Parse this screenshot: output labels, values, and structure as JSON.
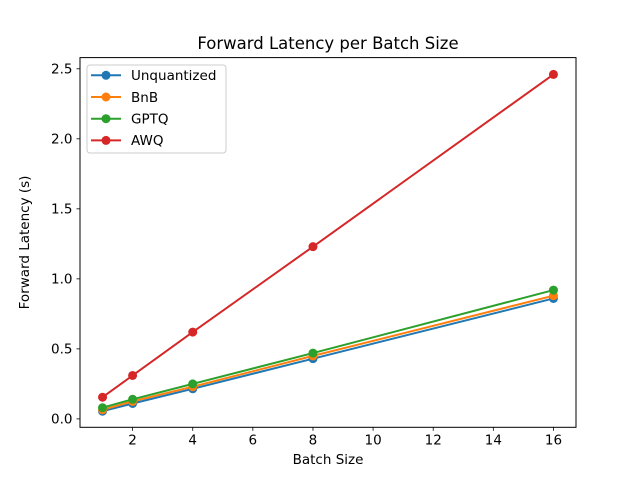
{
  "figure": {
    "background": "#ffffff"
  },
  "chart_data": {
    "type": "line",
    "title": "Forward Latency per Batch Size",
    "xlabel": "Batch Size",
    "ylabel": "Forward Latency (s)",
    "x": [
      1,
      2,
      4,
      8,
      16
    ],
    "series": [
      {
        "name": "Unquantized",
        "color": "#1f77b4",
        "values": [
          0.055,
          0.11,
          0.215,
          0.43,
          0.86
        ]
      },
      {
        "name": "BnB",
        "color": "#ff7f0e",
        "values": [
          0.065,
          0.125,
          0.23,
          0.45,
          0.88
        ]
      },
      {
        "name": "GPTQ",
        "color": "#2ca02c",
        "values": [
          0.08,
          0.14,
          0.25,
          0.47,
          0.92
        ]
      },
      {
        "name": "AWQ",
        "color": "#d62728",
        "values": [
          0.155,
          0.31,
          0.62,
          1.23,
          2.46
        ]
      }
    ],
    "xlim": [
      0.25,
      16.75
    ],
    "ylim": [
      -0.06,
      2.58
    ],
    "xticks": {
      "values": [
        2,
        4,
        6,
        8,
        10,
        12,
        14,
        16
      ],
      "labels": [
        "2",
        "4",
        "6",
        "8",
        "10",
        "12",
        "14",
        "16"
      ]
    },
    "yticks": {
      "values": [
        0,
        0.5,
        1,
        1.5,
        2,
        2.5
      ],
      "labels": [
        "0.0",
        "0.5",
        "1.0",
        "1.5",
        "2.0",
        "2.5"
      ]
    },
    "grid": false,
    "marker": "circle",
    "line_width": 2,
    "marker_radius": 4.5,
    "legend": {
      "position": "upper left",
      "border_color": "#cccccc",
      "background": "#ffffff"
    },
    "axis_color": "#000000",
    "text_color": "#000000"
  }
}
